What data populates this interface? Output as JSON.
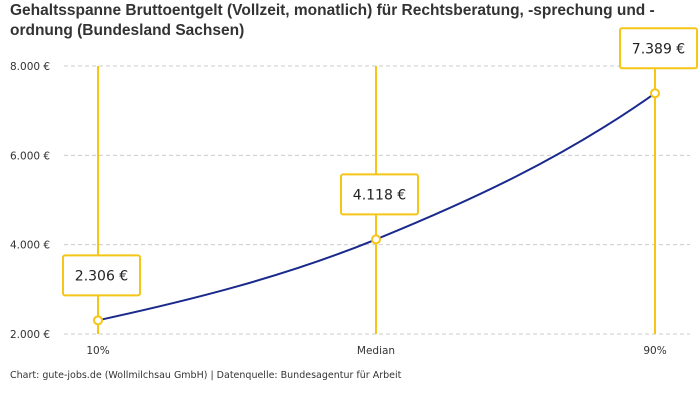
{
  "title": "Gehaltsspanne Bruttoentgelt (Vollzeit, monatlich) für Rechtsberatung, -sprechung und -ordnung (Bundesland Sachsen)",
  "source": "Chart: gute-jobs.de (Wollmilchsau GmbH) | Datenquelle: Bundesagentur für Arbeit",
  "colors": {
    "line": "#1a2a8c",
    "accent": "#f5c518",
    "grid": "#cccccc"
  },
  "chart_data": {
    "type": "line",
    "categories": [
      "10%",
      "Median",
      "90%"
    ],
    "values": [
      2306,
      4118,
      7389
    ],
    "data_labels": [
      "2.306 €",
      "4.118 €",
      "7.389 €"
    ],
    "yticks": [
      2000,
      4000,
      6000,
      8000
    ],
    "ytick_labels": [
      "2.000 €",
      "4.000 €",
      "6.000 €",
      "8.000 €"
    ],
    "ylim": [
      2000,
      8000
    ],
    "grid": "horizontal dashed",
    "legend": "none"
  }
}
